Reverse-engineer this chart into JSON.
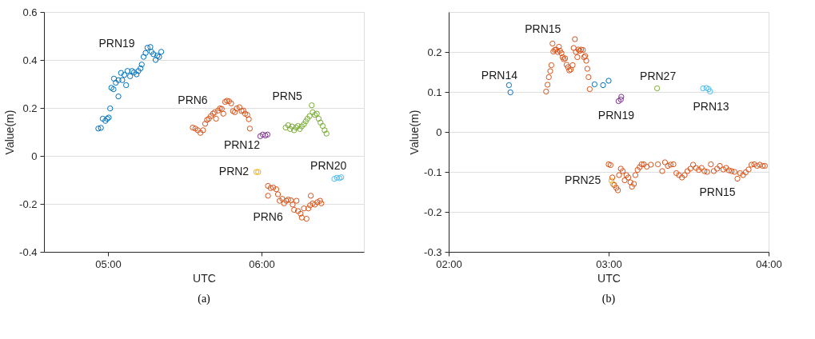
{
  "chart_data": [
    {
      "type": "scatter",
      "title": "(a)",
      "xlabel": "UTC",
      "ylabel": "Value(m)",
      "marker": "circle",
      "grid": "y",
      "xlim": [
        4.5833,
        6.6667
      ],
      "xticks": [
        {
          "value": 5,
          "label": "05:00"
        },
        {
          "value": 6,
          "label": "06:00"
        }
      ],
      "ylim": [
        -0.4,
        0.6
      ],
      "yticks": [
        -0.4,
        -0.2,
        0,
        0.2,
        0.4,
        0.6
      ],
      "series": [
        {
          "name": "PRN19",
          "color": "#0072bd",
          "x": [
            4.937,
            4.954,
            4.966,
            4.983,
            4.995,
            5.005,
            5.014,
            5.068,
            5.022,
            5.036,
            5.039,
            5.051,
            5.068,
            5.085,
            5.093,
            5.107,
            5.118,
            5.127,
            5.144,
            5.157,
            5.169,
            5.186,
            5.198,
            5.212,
            5.22,
            5.232,
            5.245,
            5.257,
            5.276,
            5.283,
            5.296,
            5.31,
            5.321,
            5.333,
            5.347
          ],
          "values": [
            0.114,
            0.117,
            0.155,
            0.146,
            0.155,
            0.16,
            0.198,
            0.248,
            0.284,
            0.278,
            0.322,
            0.305,
            0.316,
            0.346,
            0.316,
            0.338,
            0.295,
            0.354,
            0.332,
            0.354,
            0.348,
            0.34,
            0.354,
            0.365,
            0.381,
            0.413,
            0.429,
            0.451,
            0.454,
            0.434,
            0.424,
            0.4,
            0.418,
            0.413,
            0.434
          ]
        },
        {
          "name": "PRN6",
          "color": "#d95319",
          "x": [
            5.552,
            5.569,
            5.585,
            5.602,
            5.619,
            5.633,
            5.645,
            5.657,
            5.67,
            5.684,
            5.695,
            5.704,
            5.717,
            5.729,
            5.741,
            5.751,
            5.763,
            5.775,
            5.788,
            5.802,
            5.814,
            5.826,
            5.839,
            5.856,
            5.87,
            5.882,
            5.893,
            5.907,
            5.917,
            5.924
          ],
          "values": [
            0.118,
            0.114,
            0.107,
            0.096,
            0.107,
            0.134,
            0.15,
            0.155,
            0.166,
            0.176,
            0.182,
            0.155,
            0.189,
            0.198,
            0.196,
            0.176,
            0.225,
            0.23,
            0.228,
            0.219,
            0.187,
            0.182,
            0.198,
            0.203,
            0.187,
            0.189,
            0.176,
            0.171,
            0.153,
            0.114
          ]
        },
        {
          "name": "PRN12",
          "color": "#7e2f8e",
          "x": [
            5.992,
            6.008,
            6.025,
            6.039
          ],
          "values": [
            0.082,
            0.089,
            0.085,
            0.089
          ]
        },
        {
          "name": "PRN5",
          "color": "#77ac30",
          "x": [
            6.157,
            6.174,
            6.186,
            6.198,
            6.212,
            6.225,
            6.237,
            6.249,
            6.262,
            6.276,
            6.288,
            6.299,
            6.313,
            6.327,
            6.333,
            6.347,
            6.36,
            6.372,
            6.384,
            6.398,
            6.411,
            6.423
          ],
          "values": [
            0.118,
            0.128,
            0.112,
            0.123,
            0.107,
            0.118,
            0.125,
            0.112,
            0.123,
            0.132,
            0.144,
            0.155,
            0.166,
            0.211,
            0.182,
            0.171,
            0.176,
            0.155,
            0.139,
            0.125,
            0.107,
            0.093
          ]
        },
        {
          "name": "PRN2",
          "color": "#edb120",
          "x": [
            5.966,
            5.978
          ],
          "values": [
            -0.067,
            -0.067
          ]
        },
        {
          "name": "PRN20",
          "color": "#4dbeee",
          "x": [
            6.474,
            6.491,
            6.508,
            6.519
          ],
          "values": [
            -0.096,
            -0.091,
            -0.093,
            -0.089
          ]
        },
        {
          "name": "PRN6",
          "color": "#d95319",
          "x": [
            6.042,
            6.059,
            6.076,
            6.096,
            6.042,
            6.107,
            6.118,
            6.135,
            6.147,
            6.161,
            6.174,
            6.191,
            6.203,
            6.212,
            6.228,
            6.237,
            6.254,
            6.262,
            6.276,
            6.293,
            6.305,
            6.316,
            6.321,
            6.333,
            6.347,
            6.364,
            6.381,
            6.389
          ],
          "values": [
            -0.125,
            -0.134,
            -0.132,
            -0.139,
            -0.166,
            -0.16,
            -0.187,
            -0.179,
            -0.198,
            -0.187,
            -0.182,
            -0.185,
            -0.203,
            -0.225,
            -0.187,
            -0.23,
            -0.241,
            -0.257,
            -0.219,
            -0.262,
            -0.219,
            -0.206,
            -0.166,
            -0.198,
            -0.203,
            -0.193,
            -0.187,
            -0.198
          ]
        }
      ]
    },
    {
      "type": "scatter",
      "title": "(b)",
      "xlabel": "UTC",
      "ylabel": "Value(m)",
      "marker": "circle",
      "grid": "y",
      "xlim": [
        2,
        4
      ],
      "xticks": [
        {
          "value": 2,
          "label": "02:00"
        },
        {
          "value": 3,
          "label": "03:00"
        },
        {
          "value": 4,
          "label": "04:00"
        }
      ],
      "ylim": [
        -0.3,
        0.3
      ],
      "yticks": [
        -0.3,
        -0.2,
        -0.1,
        0,
        0.1,
        0.2
      ],
      "series": [
        {
          "name": "PRN14",
          "color": "#0072bd",
          "x": [
            2.377,
            2.386,
            2.912,
            2.965,
            3.0
          ],
          "values": [
            0.117,
            0.099,
            0.119,
            0.117,
            0.128
          ]
        },
        {
          "name": "PRN15",
          "color": "#d95319",
          "x": [
            2.609,
            2.618,
            2.626,
            2.635,
            2.642,
            2.649,
            2.654,
            2.663,
            2.672,
            2.681,
            2.689,
            2.696,
            2.705,
            2.712,
            2.719,
            2.728,
            2.737,
            2.746,
            2.754,
            2.763,
            2.775,
            2.781,
            2.789,
            2.795,
            2.804,
            2.811,
            2.819,
            2.828,
            2.839,
            2.846,
            2.853,
            2.86,
            2.867,
            2.874,
            2.882
          ],
          "values": [
            0.101,
            0.118,
            0.137,
            0.152,
            0.167,
            0.221,
            0.201,
            0.205,
            0.206,
            0.2,
            0.213,
            0.203,
            0.197,
            0.187,
            0.182,
            0.184,
            0.168,
            0.162,
            0.154,
            0.156,
            0.167,
            0.21,
            0.232,
            0.2,
            0.187,
            0.206,
            0.203,
            0.206,
            0.205,
            0.187,
            0.19,
            0.178,
            0.158,
            0.137,
            0.107
          ]
        },
        {
          "name": "PRN19",
          "color": "#7e2f8e",
          "x": [
            3.062,
            3.076,
            3.079
          ],
          "values": [
            0.077,
            0.081,
            0.088
          ]
        },
        {
          "name": "PRN27",
          "color": "#77ac30",
          "x": [
            3.303
          ],
          "values": [
            0.109
          ]
        },
        {
          "name": "PRN13",
          "color": "#4dbeee",
          "x": [
            3.59,
            3.611,
            3.625,
            3.634
          ],
          "values": [
            0.109,
            0.11,
            0.107,
            0.101
          ]
        },
        {
          "name": "PRN25",
          "color": "#edb120",
          "x": [
            3.018,
            3.026
          ],
          "values": [
            -0.122,
            -0.13
          ]
        },
        {
          "name": "PRN15",
          "color": "#d95319",
          "x": [
            3.0,
            3.012,
            3.023,
            3.035,
            3.048,
            3.058,
            3.065,
            3.076,
            3.088,
            3.1,
            3.111,
            3.123,
            3.136,
            3.146,
            3.158,
            3.167,
            3.181,
            3.194,
            3.206,
            3.22,
            3.238,
            3.264,
            3.308,
            3.335,
            3.352,
            3.37,
            3.387,
            3.405,
            3.423,
            3.44,
            3.458,
            3.475,
            3.493,
            3.511,
            3.528,
            3.546,
            3.563,
            3.581,
            3.599,
            3.616,
            3.639,
            3.657,
            3.678,
            3.695,
            3.717,
            3.734,
            3.752,
            3.769,
            3.787,
            3.805,
            3.822,
            3.84,
            3.857,
            3.875,
            3.893,
            3.91,
            3.928,
            3.945,
            3.963,
            3.977
          ],
          "values": [
            -0.081,
            -0.083,
            -0.114,
            -0.133,
            -0.14,
            -0.146,
            -0.108,
            -0.092,
            -0.098,
            -0.121,
            -0.108,
            -0.114,
            -0.126,
            -0.137,
            -0.13,
            -0.108,
            -0.095,
            -0.088,
            -0.081,
            -0.081,
            -0.087,
            -0.082,
            -0.081,
            -0.098,
            -0.076,
            -0.085,
            -0.082,
            -0.081,
            -0.103,
            -0.108,
            -0.114,
            -0.108,
            -0.098,
            -0.092,
            -0.082,
            -0.09,
            -0.095,
            -0.09,
            -0.098,
            -0.1,
            -0.081,
            -0.098,
            -0.092,
            -0.085,
            -0.094,
            -0.09,
            -0.096,
            -0.098,
            -0.1,
            -0.117,
            -0.103,
            -0.108,
            -0.101,
            -0.094,
            -0.082,
            -0.081,
            -0.085,
            -0.082,
            -0.085,
            -0.085
          ]
        }
      ]
    }
  ]
}
